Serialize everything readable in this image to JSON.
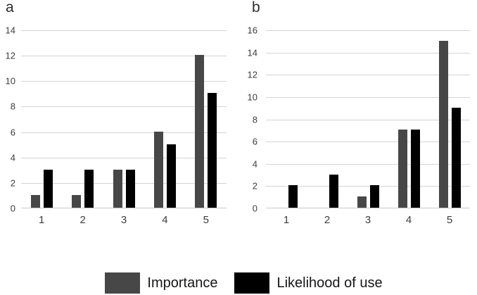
{
  "chart_data": [
    {
      "type": "bar",
      "panel_label": "a",
      "categories": [
        "1",
        "2",
        "3",
        "4",
        "5"
      ],
      "series": [
        {
          "name": "Importance",
          "values": [
            1,
            1,
            3,
            6,
            12
          ]
        },
        {
          "name": "Likelihood of use",
          "values": [
            3,
            3,
            3,
            5,
            9
          ]
        }
      ],
      "ylim": [
        0,
        14
      ],
      "y_tick_step": 2,
      "grid": true,
      "legend_position": "bottom-shared"
    },
    {
      "type": "bar",
      "panel_label": "b",
      "categories": [
        "1",
        "2",
        "3",
        "4",
        "5"
      ],
      "series": [
        {
          "name": "Importance",
          "values": [
            0,
            0,
            1,
            7,
            15
          ]
        },
        {
          "name": "Likelihood of use",
          "values": [
            2,
            3,
            2,
            7,
            9
          ]
        }
      ],
      "ylim": [
        0,
        16
      ],
      "y_tick_step": 2,
      "grid": true,
      "legend_position": "bottom-shared"
    }
  ],
  "legend": {
    "items": [
      {
        "label": "Importance",
        "color_key": "importance"
      },
      {
        "label": "Likelihood of use",
        "color_key": "likelihood"
      }
    ]
  },
  "colors": {
    "importance": "#474747",
    "likelihood": "#000000",
    "gridline": "#d4d4d4",
    "baseline": "#c9c9c9",
    "axis_text": "#3c3c3c",
    "legend_text": "#161616",
    "panel_letter": "#2d2d2d",
    "background": "#ffffff"
  }
}
